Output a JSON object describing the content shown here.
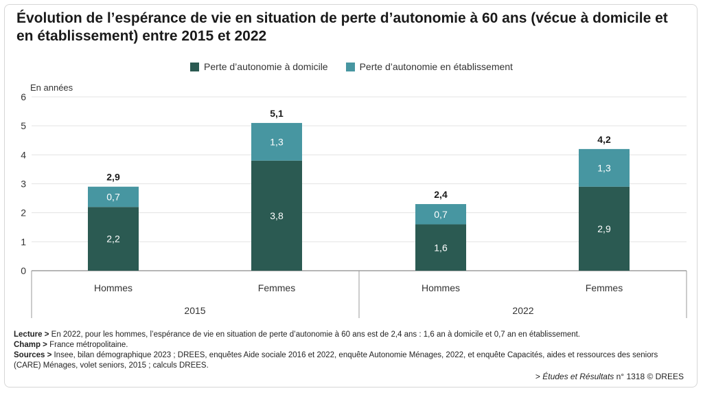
{
  "title": "Évolution de l’espérance de vie en situation de perte d’autonomie à 60 ans (vécue à domicile et en établissement) entre 2015 et 2022",
  "chart_data": {
    "type": "bar",
    "stacked": true,
    "unit_label": "En années",
    "ylim": [
      0,
      6
    ],
    "yticks": [
      "0",
      "1",
      "2",
      "3",
      "4",
      "5",
      "6"
    ],
    "grid": true,
    "legend_position": "top-center",
    "groups": [
      "2015",
      "2022"
    ],
    "categories": [
      "Hommes",
      "Femmes",
      "Hommes",
      "Femmes"
    ],
    "group_of_category": [
      0,
      0,
      1,
      1
    ],
    "series": [
      {
        "name": "Perte d’autonomie à domicile",
        "color": "#2b5a52",
        "values": [
          2.2,
          3.8,
          1.6,
          2.9
        ],
        "labels": [
          "2,2",
          "3,8",
          "1,6",
          "2,9"
        ]
      },
      {
        "name": "Perte d’autonomie en établissement",
        "color": "#4796a1",
        "values": [
          0.7,
          1.3,
          0.7,
          1.3
        ],
        "labels": [
          "0,7",
          "1,3",
          "0,7",
          "1,3"
        ]
      }
    ],
    "totals": [
      2.9,
      5.1,
      2.4,
      4.2
    ],
    "total_labels": [
      "2,9",
      "5,1",
      "2,4",
      "4,2"
    ]
  },
  "notes": {
    "lecture_label": "Lecture >",
    "lecture_text": " En 2022, pour les hommes, l’espérance de vie en situation de perte d’autonomie à 60 ans est de 2,4 ans : 1,6 an à domicile et 0,7 an en établissement.",
    "champ_label": "Champ >",
    "champ_text": " France métropolitaine.",
    "sources_label": "Sources >",
    "sources_text": " Insee, bilan démographique 2023 ; DREES, enquêtes Aide sociale 2016 et 2022, enquête Autonomie Ménages, 2022, et enquête Capacités, aides et ressources des seniors (CARE) Ménages, volet seniors, 2015 ; calculs DREES."
  },
  "credit": {
    "prefix": "> ",
    "publication": "Études et Résultats",
    "suffix": " n° 1318 © DREES"
  }
}
